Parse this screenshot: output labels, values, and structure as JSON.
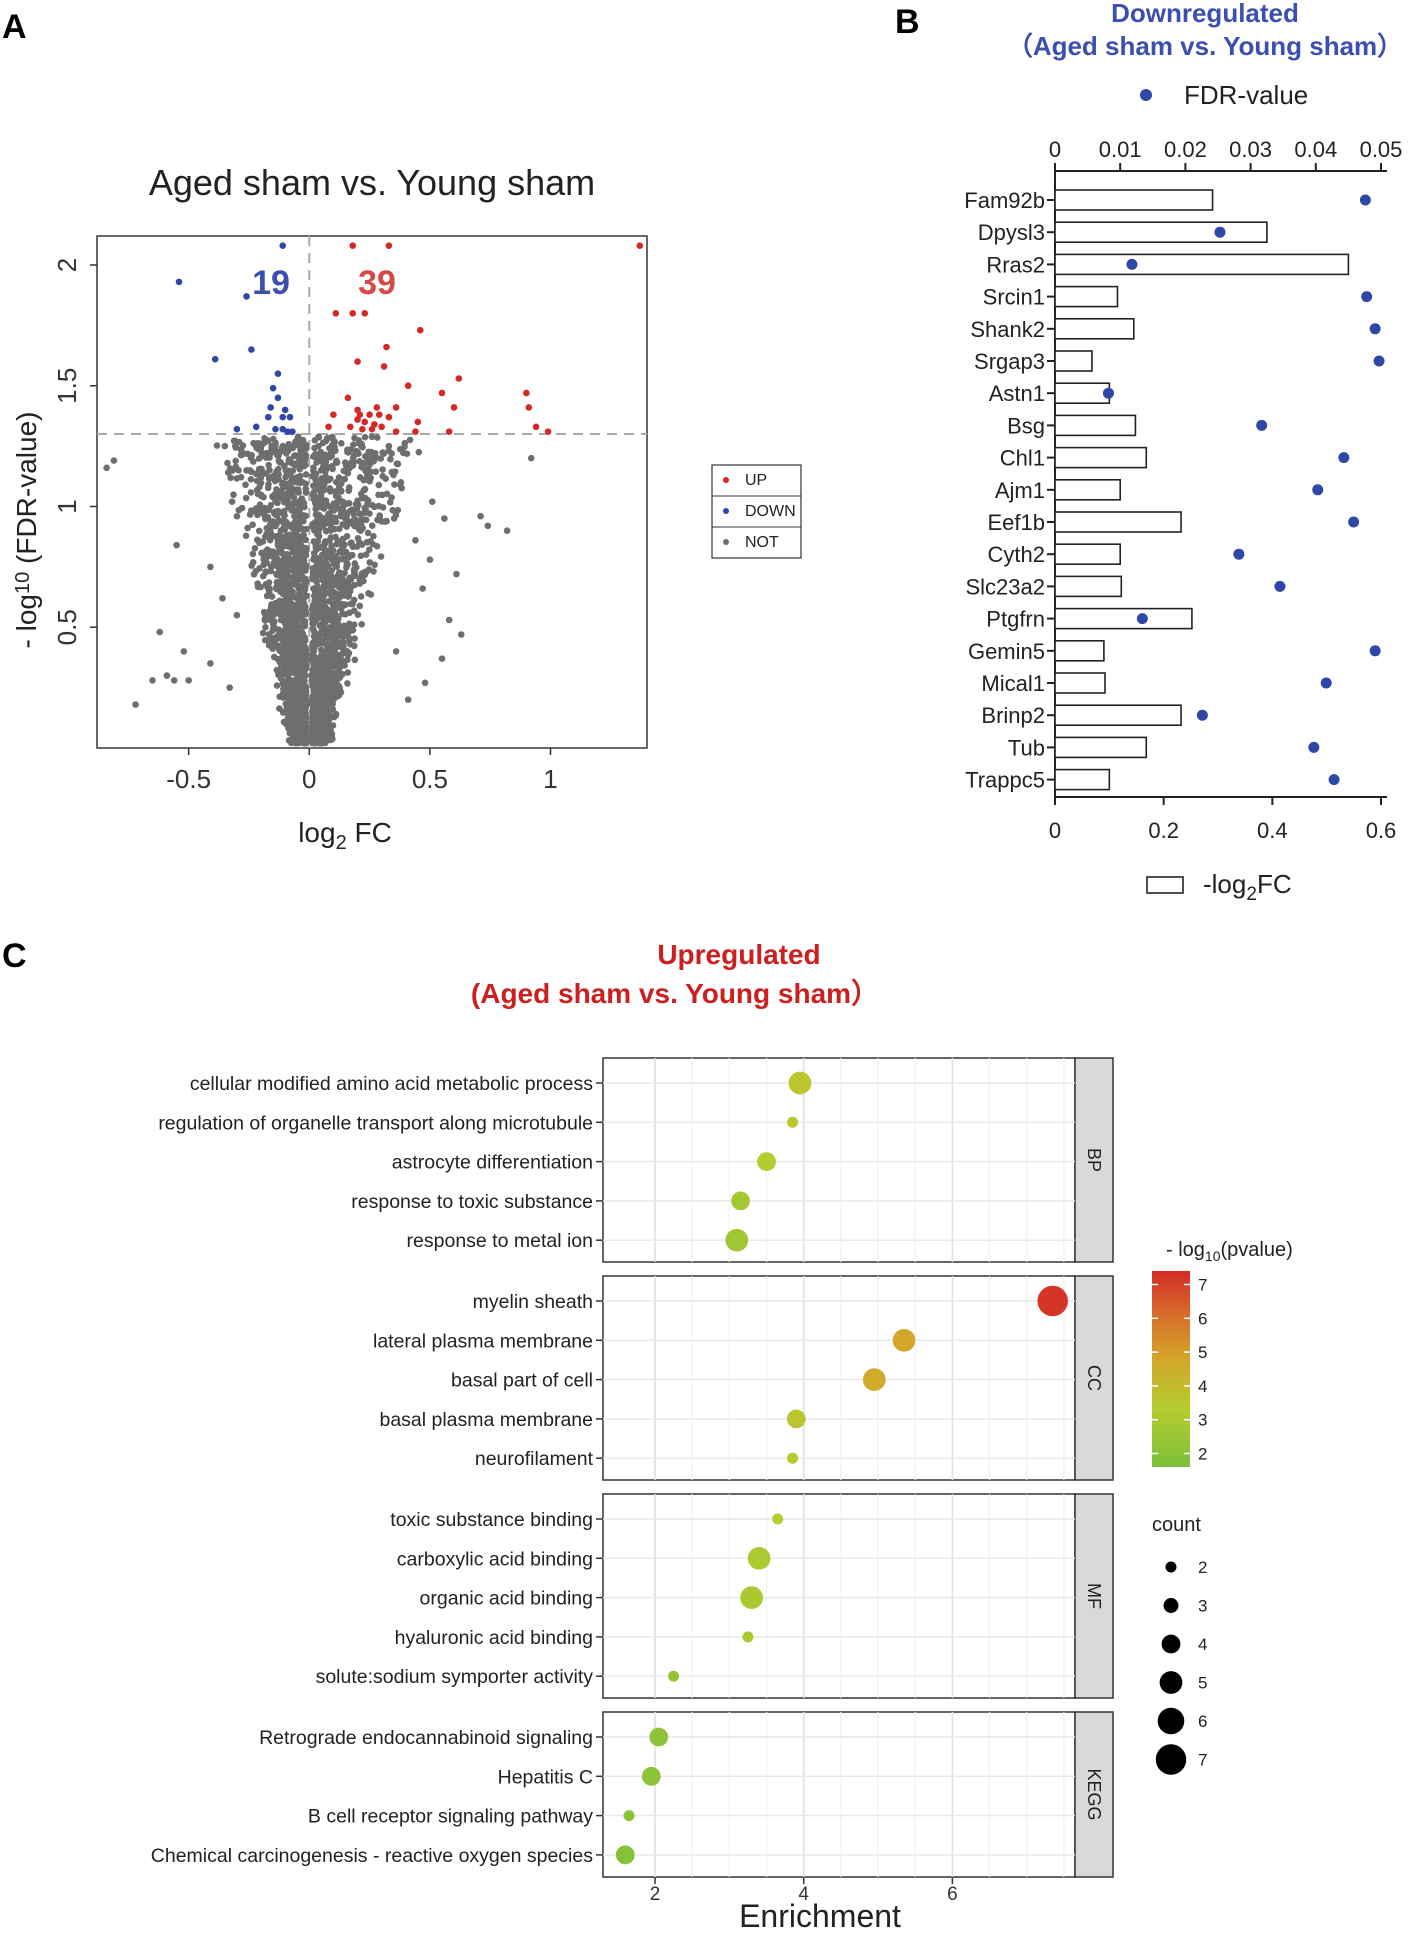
{
  "panel_labels": [
    "A",
    "B",
    "C"
  ],
  "chart_data": [
    {
      "type": "scatter",
      "panel": "A",
      "title": "Aged sham vs. Young sham",
      "xlabel_main": "log",
      "xlabel_sub": "2",
      "xlabel_tail": " FC",
      "ylabel_pre": "- log",
      "ylabel_sub": "10",
      "ylabel_post": " (FDR-value)",
      "xlim": [
        -0.88,
        1.4
      ],
      "ylim": [
        0.0,
        2.12
      ],
      "xticks": [
        -0.5,
        0,
        0.5,
        1
      ],
      "xtick_labels": [
        "-0.5",
        "0",
        "0.5",
        "1"
      ],
      "yticks": [
        0.5,
        1,
        1.5,
        2
      ],
      "ytick_labels": [
        "0.5",
        "1",
        "1.5",
        "2"
      ],
      "threshold_y": 1.3,
      "threshold_x": 0,
      "count_down": "19",
      "count_up": "39",
      "legend": [
        {
          "label": "UP",
          "color": "#d42a25"
        },
        {
          "label": "DOWN",
          "color": "#2f47a6"
        },
        {
          "label": "NOT",
          "color": "#6e6e6e"
        }
      ],
      "up_points": [
        [
          0.18,
          2.08
        ],
        [
          0.33,
          2.08
        ],
        [
          1.37,
          2.08
        ],
        [
          0.11,
          1.8
        ],
        [
          0.18,
          1.8
        ],
        [
          0.23,
          1.8
        ],
        [
          0.46,
          1.73
        ],
        [
          0.32,
          1.66
        ],
        [
          0.2,
          1.6
        ],
        [
          0.31,
          1.58
        ],
        [
          0.62,
          1.53
        ],
        [
          0.41,
          1.5
        ],
        [
          0.9,
          1.47
        ],
        [
          0.55,
          1.47
        ],
        [
          0.16,
          1.45
        ],
        [
          0.2,
          1.4
        ],
        [
          0.28,
          1.41
        ],
        [
          0.36,
          1.41
        ],
        [
          0.6,
          1.41
        ],
        [
          0.91,
          1.41
        ],
        [
          0.1,
          1.38
        ],
        [
          0.21,
          1.38
        ],
        [
          0.25,
          1.38
        ],
        [
          0.29,
          1.38
        ],
        [
          0.33,
          1.37
        ],
        [
          0.2,
          1.36
        ],
        [
          0.23,
          1.35
        ],
        [
          0.27,
          1.34
        ],
        [
          0.45,
          1.35
        ],
        [
          0.08,
          1.33
        ],
        [
          0.17,
          1.33
        ],
        [
          0.22,
          1.32
        ],
        [
          0.26,
          1.32
        ],
        [
          0.3,
          1.33
        ],
        [
          0.36,
          1.31
        ],
        [
          0.44,
          1.31
        ],
        [
          0.58,
          1.31
        ],
        [
          0.94,
          1.33
        ],
        [
          0.99,
          1.31
        ]
      ],
      "down_points": [
        [
          -0.11,
          2.08
        ],
        [
          -0.54,
          1.93
        ],
        [
          -0.26,
          1.87
        ],
        [
          -0.24,
          1.65
        ],
        [
          -0.39,
          1.61
        ],
        [
          -0.13,
          1.55
        ],
        [
          -0.15,
          1.49
        ],
        [
          -0.13,
          1.45
        ],
        [
          -0.16,
          1.41
        ],
        [
          -0.1,
          1.4
        ],
        [
          -0.17,
          1.37
        ],
        [
          -0.11,
          1.37
        ],
        [
          -0.08,
          1.37
        ],
        [
          -0.22,
          1.33
        ],
        [
          -0.14,
          1.32
        ],
        [
          -0.3,
          1.32
        ],
        [
          -0.11,
          1.32
        ],
        [
          -0.07,
          1.31
        ],
        [
          -0.09,
          1.31
        ]
      ],
      "scattered_not_points": [
        [
          -0.81,
          1.19
        ],
        [
          -0.84,
          1.16
        ],
        [
          -0.55,
          0.84
        ],
        [
          -0.62,
          0.48
        ],
        [
          -0.65,
          0.28
        ],
        [
          -0.59,
          0.3
        ],
        [
          -0.56,
          0.28
        ],
        [
          -0.5,
          0.28
        ],
        [
          -0.72,
          0.18
        ],
        [
          -0.52,
          0.4
        ],
        [
          -0.36,
          0.62
        ],
        [
          -0.41,
          0.75
        ],
        [
          -0.32,
          1.02
        ],
        [
          0.71,
          0.96
        ],
        [
          0.74,
          0.92
        ],
        [
          0.82,
          0.9
        ],
        [
          0.5,
          0.78
        ],
        [
          0.56,
          0.95
        ],
        [
          0.61,
          0.72
        ],
        [
          0.47,
          0.66
        ],
        [
          0.58,
          0.53
        ],
        [
          0.63,
          0.47
        ],
        [
          0.55,
          0.37
        ],
        [
          0.48,
          0.27
        ],
        [
          0.92,
          1.2
        ],
        [
          0.38,
          1.1
        ],
        [
          -0.26,
          1.15
        ],
        [
          -0.3,
          0.55
        ],
        [
          0.41,
          0.2
        ],
        [
          0.36,
          0.4
        ],
        [
          0.51,
          1.02
        ],
        [
          0.44,
          0.86
        ],
        [
          -0.41,
          0.35
        ],
        [
          -0.33,
          0.25
        ],
        [
          0.33,
          1.25
        ],
        [
          -0.35,
          1.25
        ]
      ]
    },
    {
      "type": "bar",
      "panel": "B",
      "title": "Downregulated",
      "subtitle": "（Aged sham vs. Young sham）",
      "legend_dot": "FDR-value",
      "legend_bar_pre": "-log",
      "legend_bar_sub": "2",
      "legend_bar_post": "FC",
      "categories": [
        "Fam92b",
        "Dpysl3",
        "Rras2",
        "Srcin1",
        "Shank2",
        "Srgap3",
        "Astn1",
        "Bsg",
        "Chl1",
        "Ajm1",
        "Eef1b",
        "Cyth2",
        "Slc23a2",
        "Ptgfrn",
        "Gemin5",
        "Mical1",
        "Brinp2",
        "Tub",
        "Trappc5"
      ],
      "bar_values": [
        0.29,
        0.39,
        0.54,
        0.115,
        0.145,
        0.068,
        0.1,
        0.148,
        0.168,
        0.12,
        0.232,
        0.12,
        0.122,
        0.252,
        0.09,
        0.092,
        0.232,
        0.168,
        0.1
      ],
      "dot_values": [
        0.0476,
        0.0253,
        0.0118,
        0.0478,
        0.0491,
        0.0497,
        0.0082,
        0.0317,
        0.0443,
        0.0403,
        0.0458,
        0.0282,
        0.0345,
        0.0134,
        0.0491,
        0.0416,
        0.0226,
        0.0397,
        0.0428
      ],
      "bottom_axis_ticks": [
        0,
        0.2,
        0.4,
        0.6
      ],
      "bottom_axis_labels": [
        "0",
        "0.2",
        "0.4",
        "0.6"
      ],
      "bottom_axis_lim": [
        0,
        0.6
      ],
      "top_axis_ticks": [
        0,
        0.01,
        0.02,
        0.03,
        0.04,
        0.05
      ],
      "top_axis_labels": [
        "0",
        "0.01",
        "0.02",
        "0.03",
        "0.04",
        "0.05"
      ],
      "top_axis_lim": [
        0,
        0.05
      ],
      "dot_color": "#2f47a6"
    },
    {
      "type": "scatter",
      "subtype": "dot-enrichment",
      "panel": "C",
      "title": "Upregulated",
      "subtitle": "(Aged sham vs. Young sham）",
      "xlabel": "Enrichment",
      "xlim": [
        1.3,
        7.65
      ],
      "xticks": [
        2,
        4,
        6
      ],
      "xtick_labels": [
        "2",
        "4",
        "6"
      ],
      "color_legend_pre": "- log",
      "color_legend_sub": "10",
      "color_legend_post": "(pvalue)",
      "color_ticks": [
        2,
        3,
        4,
        5,
        6,
        7
      ],
      "color_tick_labels": [
        "2",
        "3",
        "4",
        "5",
        "6",
        "7"
      ],
      "color_range": [
        1.6,
        7.4
      ],
      "size_legend_title": "count",
      "size_values": [
        2,
        3,
        4,
        5,
        6,
        7
      ],
      "size_labels": [
        "2",
        "3",
        "4",
        "5",
        "6",
        "7"
      ],
      "groups": [
        {
          "name": "BP",
          "terms": [
            {
              "term": "cellular modified amino acid metabolic process",
              "x": 3.95,
              "count": 5,
              "logp": 3.6
            },
            {
              "term": "regulation of organelle transport along microtubule",
              "x": 3.85,
              "count": 2,
              "logp": 3.5
            },
            {
              "term": "astrocyte differentiation",
              "x": 3.5,
              "count": 4,
              "logp": 3.3
            },
            {
              "term": "response to toxic substance",
              "x": 3.15,
              "count": 4,
              "logp": 2.8
            },
            {
              "term": "response to metal ion",
              "x": 3.1,
              "count": 5,
              "logp": 2.7
            }
          ]
        },
        {
          "name": "CC",
          "terms": [
            {
              "term": "myelin sheath",
              "x": 7.35,
              "count": 7,
              "logp": 7.2
            },
            {
              "term": "lateral plasma membrane",
              "x": 5.35,
              "count": 5,
              "logp": 4.8
            },
            {
              "term": "basal part of cell",
              "x": 4.95,
              "count": 5,
              "logp": 4.6
            },
            {
              "term": "basal plasma membrane",
              "x": 3.9,
              "count": 4,
              "logp": 3.6
            },
            {
              "term": "neurofilament",
              "x": 3.85,
              "count": 2,
              "logp": 3.5
            }
          ]
        },
        {
          "name": "MF",
          "terms": [
            {
              "term": "toxic substance binding",
              "x": 3.65,
              "count": 2,
              "logp": 3.3
            },
            {
              "term": "carboxylic acid binding",
              "x": 3.4,
              "count": 5,
              "logp": 3.1
            },
            {
              "term": "organic acid binding",
              "x": 3.3,
              "count": 5,
              "logp": 3.0
            },
            {
              "term": "hyaluronic acid binding",
              "x": 3.25,
              "count": 2,
              "logp": 3.0
            },
            {
              "term": "solute:sodium symporter activity",
              "x": 2.25,
              "count": 2,
              "logp": 2.3
            }
          ]
        },
        {
          "name": "KEGG",
          "terms": [
            {
              "term": "Retrograde endocannabinoid signaling",
              "x": 2.05,
              "count": 4,
              "logp": 2.2
            },
            {
              "term": "Hepatitis C",
              "x": 1.95,
              "count": 4,
              "logp": 2.1
            },
            {
              "term": "B cell receptor signaling pathway",
              "x": 1.65,
              "count": 2,
              "logp": 2.0
            },
            {
              "term": "Chemical carcinogenesis -  reactive oxygen species",
              "x": 1.6,
              "count": 4,
              "logp": 1.9
            }
          ]
        }
      ]
    }
  ]
}
